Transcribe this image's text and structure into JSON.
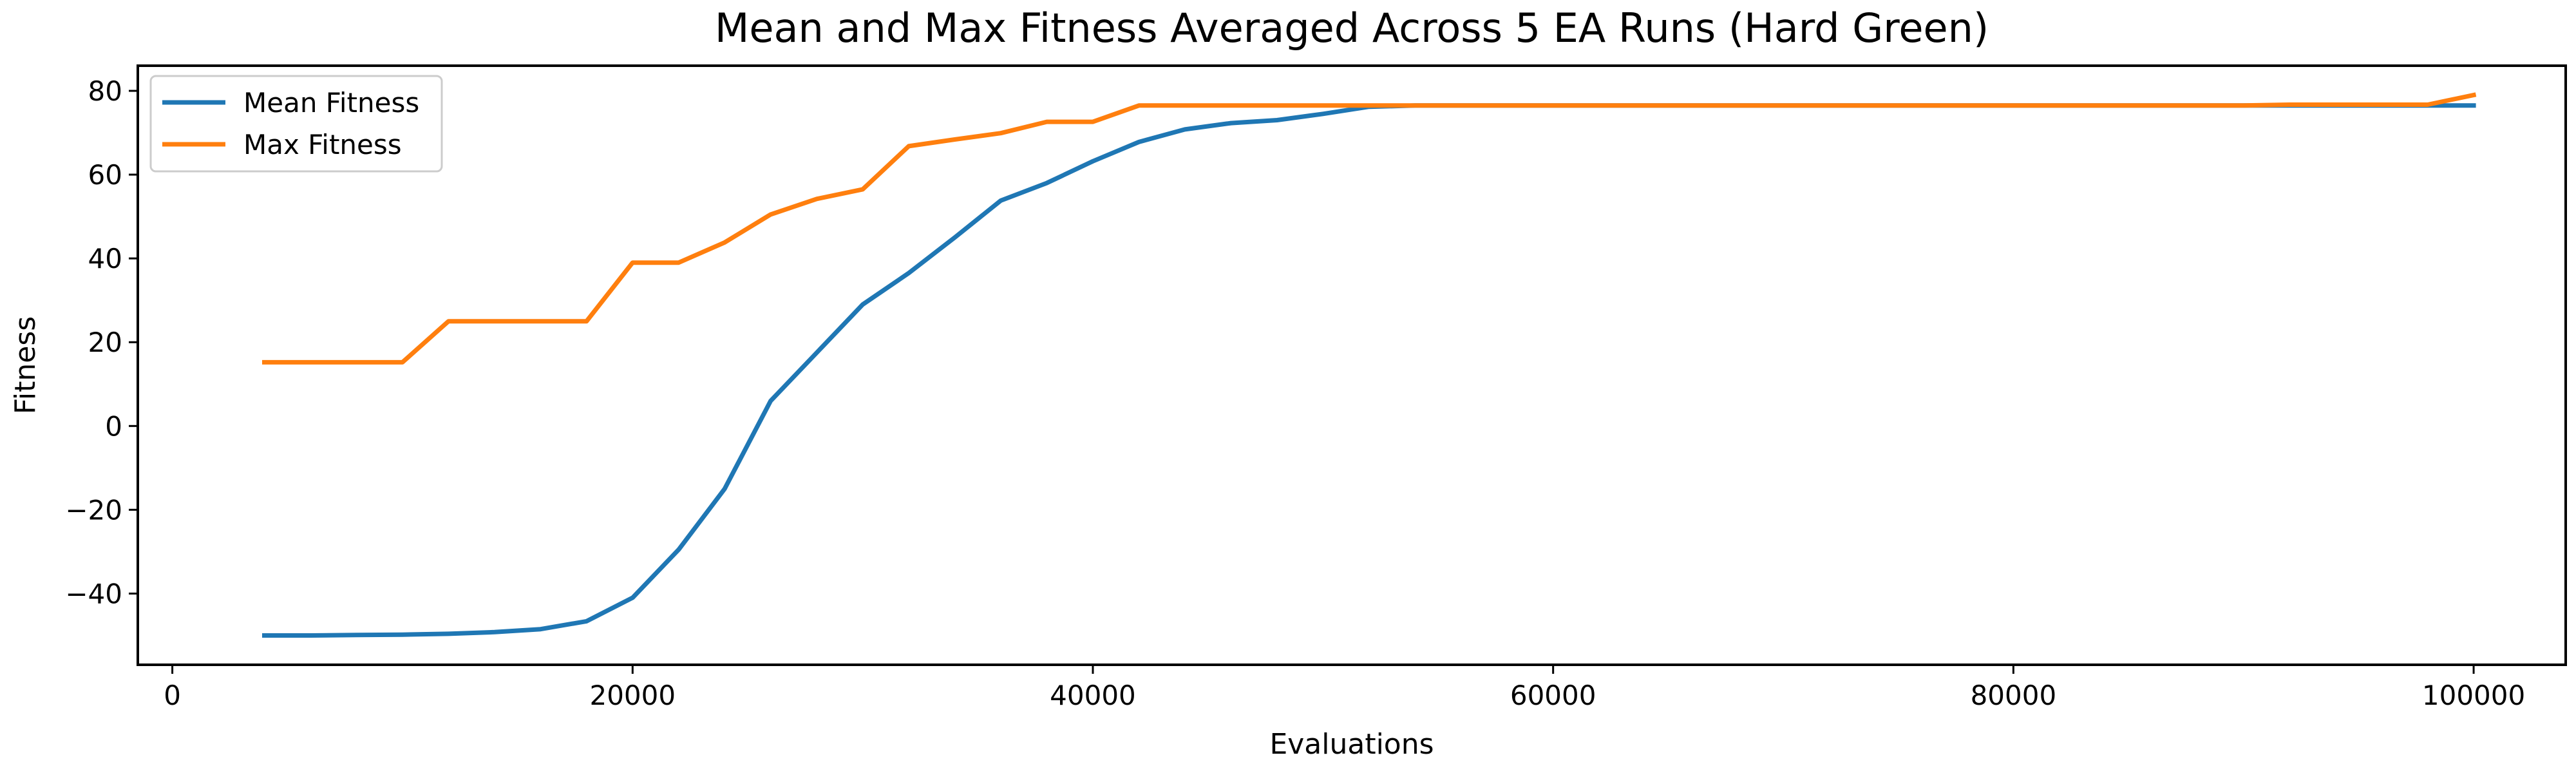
{
  "chart_data": {
    "type": "line",
    "title": "Mean and Max Fitness Averaged Across 5 EA Runs (Hard Green)",
    "xlabel": "Evaluations",
    "ylabel": "Fitness",
    "xlim": [
      -1500,
      104000
    ],
    "ylim": [
      -57,
      86
    ],
    "xticks": [
      0,
      20000,
      40000,
      60000,
      80000,
      100000
    ],
    "xtick_labels": [
      "0",
      "20000",
      "40000",
      "60000",
      "80000",
      "100000"
    ],
    "yticks": [
      -40,
      -20,
      0,
      20,
      40,
      60,
      80
    ],
    "ytick_labels": [
      "−40",
      "−20",
      "0",
      "20",
      "40",
      "60",
      "80"
    ],
    "grid": false,
    "legend_position": "top-left",
    "series": [
      {
        "name": "Mean Fitness",
        "color": "#1f77b4",
        "x": [
          4000,
          6000,
          8000,
          10000,
          12000,
          14000,
          16000,
          18000,
          20000,
          22000,
          24000,
          26000,
          28000,
          30000,
          32000,
          34000,
          36000,
          38000,
          40000,
          42000,
          44000,
          46000,
          48000,
          50000,
          52000,
          54000,
          56000,
          58000,
          60000,
          62000,
          64000,
          66000,
          68000,
          70000,
          72000,
          74000,
          76000,
          78000,
          80000,
          82000,
          84000,
          86000,
          88000,
          90000,
          92000,
          94000,
          96000,
          98000,
          100000
        ],
        "y": [
          -50,
          -50,
          -49.9,
          -49.8,
          -49.6,
          -49.2,
          -48.5,
          -46.6,
          -41,
          -29.5,
          -15,
          6,
          17.5,
          29,
          36.5,
          45,
          53.8,
          58,
          63.2,
          67.8,
          70.8,
          72.3,
          73,
          74.5,
          76.2,
          76.5,
          76.5,
          76.5,
          76.5,
          76.5,
          76.5,
          76.5,
          76.5,
          76.5,
          76.5,
          76.5,
          76.5,
          76.5,
          76.5,
          76.5,
          76.5,
          76.5,
          76.5,
          76.5,
          76.5,
          76.5,
          76.5,
          76.5,
          76.5
        ]
      },
      {
        "name": "Max Fitness",
        "color": "#ff7f0e",
        "x": [
          4000,
          6000,
          8000,
          10000,
          12000,
          14000,
          16000,
          18000,
          20000,
          22000,
          24000,
          26000,
          28000,
          30000,
          32000,
          34000,
          36000,
          38000,
          40000,
          42000,
          44000,
          46000,
          48000,
          50000,
          52000,
          54000,
          56000,
          58000,
          60000,
          62000,
          64000,
          66000,
          68000,
          70000,
          72000,
          74000,
          76000,
          78000,
          80000,
          82000,
          84000,
          86000,
          88000,
          90000,
          92000,
          94000,
          96000,
          98000,
          100000
        ],
        "y": [
          15.2,
          15.2,
          15.2,
          15.2,
          25,
          25,
          25,
          25,
          39,
          39,
          43.8,
          50.5,
          54.2,
          56.5,
          66.8,
          68.4,
          69.9,
          72.6,
          72.6,
          76.5,
          76.5,
          76.5,
          76.5,
          76.5,
          76.5,
          76.5,
          76.5,
          76.5,
          76.5,
          76.5,
          76.5,
          76.5,
          76.5,
          76.5,
          76.5,
          76.5,
          76.5,
          76.5,
          76.5,
          76.5,
          76.5,
          76.5,
          76.5,
          76.5,
          76.7,
          76.7,
          76.7,
          76.7,
          79
        ]
      }
    ]
  }
}
